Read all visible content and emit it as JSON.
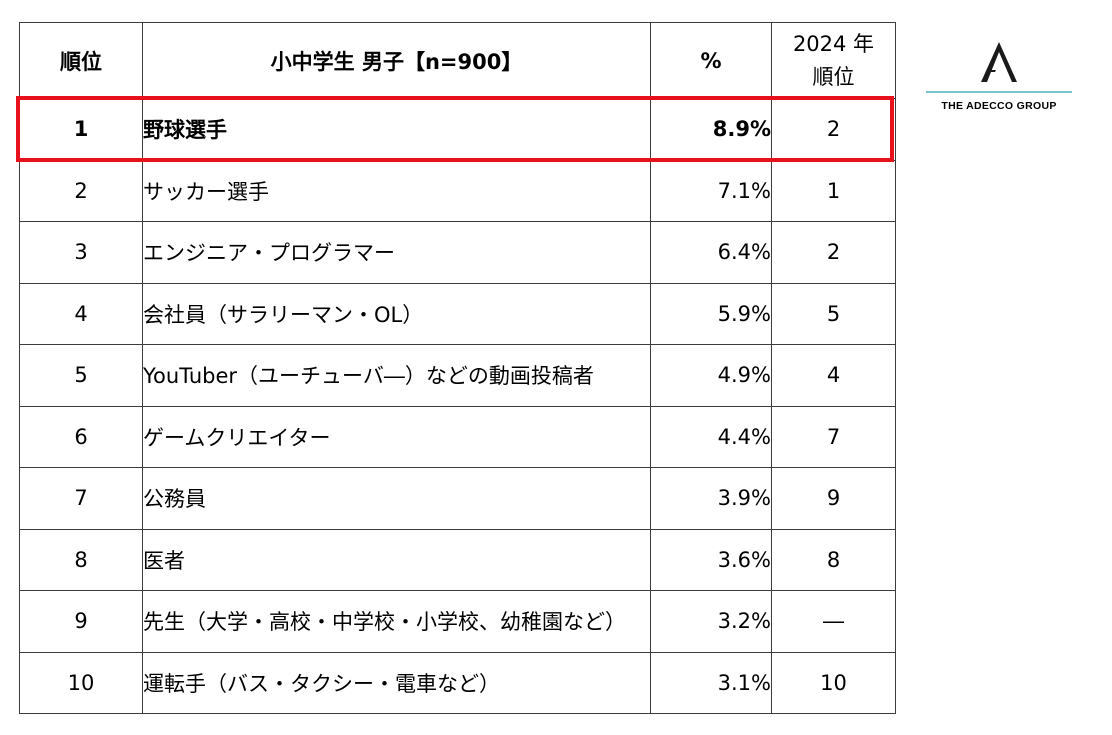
{
  "chart_data": {
    "type": "table",
    "headers": {
      "rank": "順位",
      "job": "小中学生 男子【n=900】",
      "pct": "%",
      "prev_line1": "2024 年",
      "prev_line2": "順位"
    },
    "rows": [
      {
        "rank": "1",
        "job": "野球選手",
        "pct": "8.9%",
        "prev": "2"
      },
      {
        "rank": "2",
        "job": "サッカー選手",
        "pct": "7.1%",
        "prev": "1"
      },
      {
        "rank": "3",
        "job": "エンジニア・プログラマー",
        "pct": "6.4%",
        "prev": "2"
      },
      {
        "rank": "4",
        "job": "会社員（サラリーマン・OL）",
        "pct": "5.9%",
        "prev": "5"
      },
      {
        "rank": "5",
        "job": "YouTuber（ユーチューバ―）などの動画投稿者",
        "pct": "4.9%",
        "prev": "4"
      },
      {
        "rank": "6",
        "job": "ゲームクリエイター",
        "pct": "4.4%",
        "prev": "7"
      },
      {
        "rank": "7",
        "job": "公務員",
        "pct": "3.9%",
        "prev": "9"
      },
      {
        "rank": "8",
        "job": "医者",
        "pct": "3.6%",
        "prev": "8"
      },
      {
        "rank": "9",
        "job": "先生（大学・高校・中学校・小学校、幼稚園など）",
        "pct": "3.2%",
        "prev": "―"
      },
      {
        "rank": "10",
        "job": "運転手（バス・タクシー・電車など）",
        "pct": "3.1%",
        "prev": "10"
      }
    ],
    "highlighted_rank": "1"
  },
  "logo": {
    "text": "THE ADECCO GROUP",
    "line_color": "#7cc6cc",
    "mark_color": "#1a1a1a"
  },
  "colors": {
    "highlight_border": "#e8101a",
    "table_border": "#3c3c3c"
  }
}
